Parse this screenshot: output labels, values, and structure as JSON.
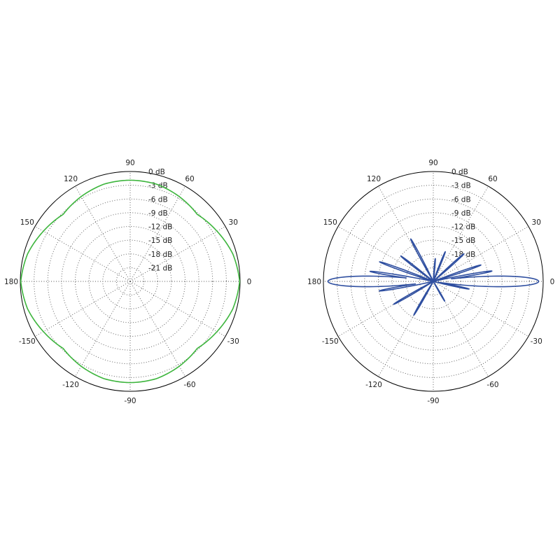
{
  "colors": {
    "left_trace": "#3db53d",
    "right_trace": "#2f4fa0"
  },
  "chart_data": [
    {
      "type": "line",
      "coordinate_system": "polar",
      "angle_unit": "degrees",
      "angle_labels": [
        "0",
        "30",
        "60",
        "90",
        "120",
        "150",
        "180",
        "-150",
        "-120",
        "-90",
        "-60",
        "-30"
      ],
      "radial_labels": [
        "0 dB",
        "-3 dB",
        "-6 dB",
        "-9 dB",
        "-12 dB",
        "-15 dB",
        "-18 dB",
        "-21 dB"
      ],
      "rlim": [
        -24,
        0
      ],
      "grid": true,
      "series": [
        {
          "color": "#3db53d",
          "angles": [
            0,
            15,
            30,
            45,
            60,
            75,
            90,
            105,
            120,
            135,
            150,
            165,
            180,
            195,
            210,
            225,
            240,
            255,
            270,
            285,
            300,
            315,
            330,
            345
          ],
          "values_db": [
            -0.1,
            -0.8,
            -2.1,
            -3.3,
            -2.6,
            -2.0,
            -1.9,
            -2.0,
            -2.6,
            -3.3,
            -2.1,
            -0.8,
            -0.1,
            -0.8,
            -2.1,
            -3.3,
            -2.6,
            -2.0,
            -1.9,
            -2.0,
            -2.6,
            -3.3,
            -2.1,
            -0.8
          ]
        }
      ]
    },
    {
      "type": "line",
      "coordinate_system": "polar",
      "angle_unit": "degrees",
      "angle_labels": [
        "0",
        "30",
        "60",
        "90",
        "120",
        "150",
        "180",
        "-150",
        "-120",
        "-90",
        "-60",
        "-30"
      ],
      "radial_labels": [
        "0 dB",
        "-3 dB",
        "-6 dB",
        "-9 dB",
        "-12 dB",
        "-15 dB",
        "-18 dB"
      ],
      "rlim": [
        -24,
        0
      ],
      "grid": true,
      "series": [
        {
          "color": "#2f4fa0",
          "main_lobes": [
            {
              "angle": 0,
              "peak_db": -1.0,
              "halfwidth_deg": 5
            },
            {
              "angle": 180,
              "peak_db": -1.0,
              "halfwidth_deg": 5
            }
          ],
          "side_lobes": [
            {
              "angle": 10,
              "peak_db": -11
            },
            {
              "angle": 19,
              "peak_db": -13
            },
            {
              "angle": 42,
              "peak_db": -15
            },
            {
              "angle": 68,
              "peak_db": -17
            },
            {
              "angle": 85,
              "peak_db": -19
            },
            {
              "angle": 118,
              "peak_db": -13.5
            },
            {
              "angle": 142,
              "peak_db": -15
            },
            {
              "angle": 160,
              "peak_db": -11.5
            },
            {
              "angle": 171,
              "peak_db": -10
            },
            {
              "angle": -12,
              "peak_db": -16
            },
            {
              "angle": -60,
              "peak_db": -19
            },
            {
              "angle": -120,
              "peak_db": -15.5
            },
            {
              "angle": -150,
              "peak_db": -14
            },
            {
              "angle": -170,
              "peak_db": -12
            }
          ],
          "floor_db": -24
        }
      ]
    }
  ]
}
